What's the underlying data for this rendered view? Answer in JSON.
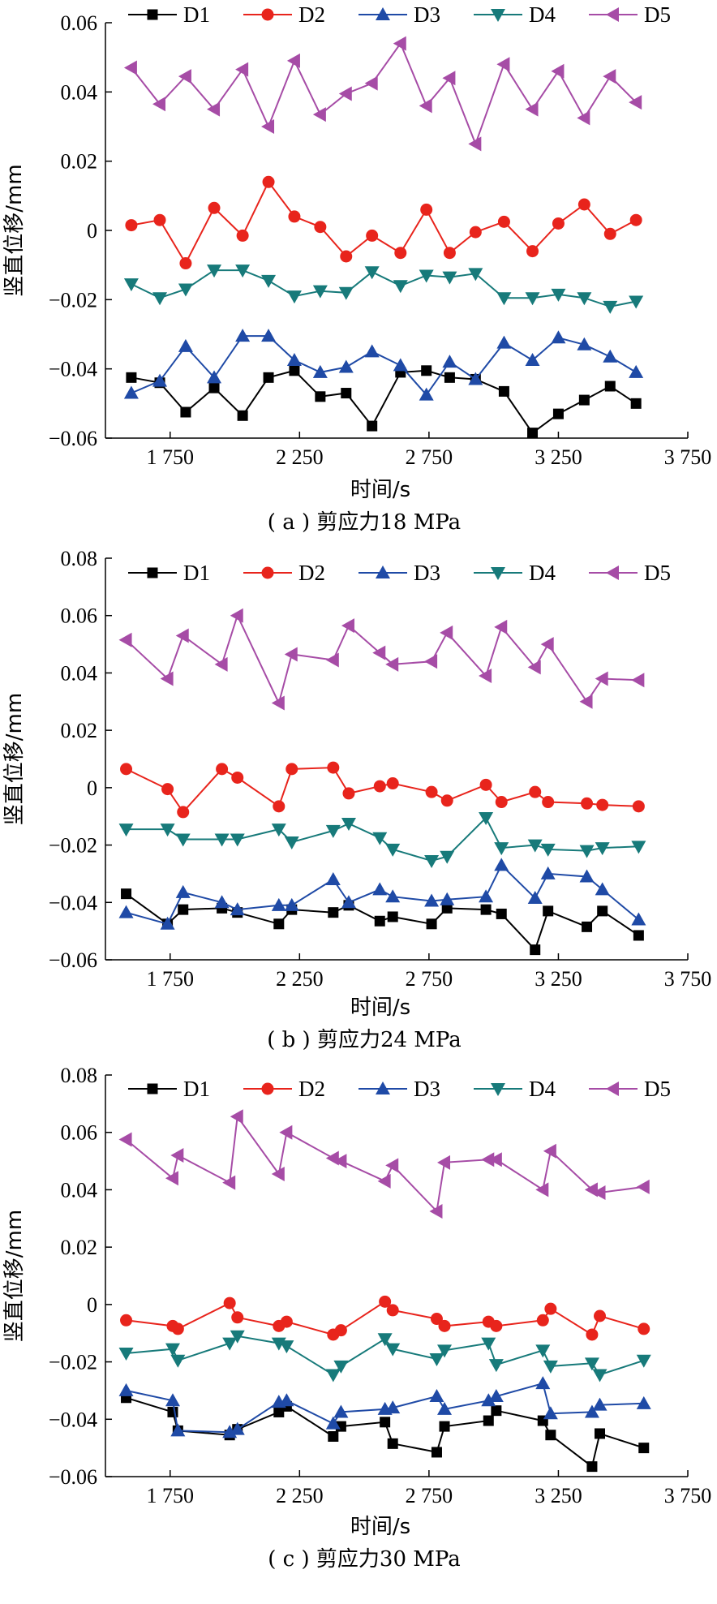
{
  "chart_data": [
    {
      "type": "line",
      "caption": "( a ) 剪应力18 MPa",
      "xlabel": "时间/s",
      "ylabel": "竖直位移/mm",
      "xlim": [
        1500,
        3750
      ],
      "ylim": [
        -0.06,
        0.06
      ],
      "xticks": [
        1750,
        2250,
        2750,
        3250,
        3750
      ],
      "xtick_labels": [
        "1 750",
        "2 250",
        "2 750",
        "3 250",
        "3 750"
      ],
      "yticks": [
        -0.06,
        -0.04,
        -0.02,
        0,
        0.02,
        0.04,
        0.06
      ],
      "ytick_labels": [
        "−0.06",
        "−0.04",
        "−0.02",
        "0",
        "0.02",
        "0.04",
        "0.06"
      ],
      "legend_position": "top",
      "series": [
        {
          "name": "D1",
          "color": "#000000",
          "marker": "square",
          "x": [
            1600,
            1710,
            1810,
            1920,
            2030,
            2130,
            2230,
            2330,
            2430,
            2530,
            2640,
            2740,
            2830,
            2930,
            3040,
            3150,
            3250,
            3350,
            3450,
            3550
          ],
          "y": [
            -0.0425,
            -0.044,
            -0.0525,
            -0.0455,
            -0.0535,
            -0.0425,
            -0.0405,
            -0.048,
            -0.047,
            -0.0565,
            -0.041,
            -0.0405,
            -0.0425,
            -0.043,
            -0.0465,
            -0.0585,
            -0.053,
            -0.049,
            -0.045,
            -0.05
          ]
        },
        {
          "name": "D2",
          "color": "#e8241c",
          "marker": "circle",
          "x": [
            1600,
            1710,
            1810,
            1920,
            2030,
            2130,
            2230,
            2330,
            2430,
            2530,
            2640,
            2740,
            2830,
            2930,
            3040,
            3150,
            3250,
            3350,
            3450,
            3550
          ],
          "y": [
            0.0015,
            0.003,
            -0.0095,
            0.0065,
            -0.0015,
            0.014,
            0.004,
            0.001,
            -0.0075,
            -0.0015,
            -0.0065,
            0.006,
            -0.0065,
            -0.0005,
            0.0025,
            -0.006,
            0.002,
            0.0075,
            -0.001,
            0.003
          ]
        },
        {
          "name": "D3",
          "color": "#1f4aa6",
          "marker": "triangle-up",
          "x": [
            1600,
            1710,
            1810,
            1920,
            2030,
            2130,
            2230,
            2330,
            2430,
            2530,
            2640,
            2740,
            2830,
            2930,
            3040,
            3150,
            3250,
            3350,
            3450,
            3550
          ],
          "y": [
            -0.047,
            -0.0435,
            -0.0335,
            -0.0425,
            -0.0305,
            -0.0305,
            -0.0375,
            -0.041,
            -0.0395,
            -0.035,
            -0.039,
            -0.0475,
            -0.038,
            -0.043,
            -0.0325,
            -0.0375,
            -0.031,
            -0.033,
            -0.0365,
            -0.041
          ]
        },
        {
          "name": "D4",
          "color": "#177a7a",
          "marker": "triangle-down",
          "x": [
            1600,
            1710,
            1810,
            1920,
            2030,
            2130,
            2230,
            2330,
            2430,
            2530,
            2640,
            2740,
            2830,
            2930,
            3040,
            3150,
            3250,
            3350,
            3450,
            3550
          ],
          "y": [
            -0.0155,
            -0.0195,
            -0.017,
            -0.0115,
            -0.0115,
            -0.0145,
            -0.019,
            -0.0175,
            -0.018,
            -0.012,
            -0.016,
            -0.013,
            -0.0135,
            -0.0125,
            -0.0195,
            -0.0195,
            -0.0185,
            -0.0195,
            -0.022,
            -0.0205
          ]
        },
        {
          "name": "D5",
          "color": "#a64ca6",
          "marker": "triangle-left",
          "x": [
            1600,
            1710,
            1810,
            1920,
            2030,
            2130,
            2230,
            2330,
            2430,
            2530,
            2640,
            2740,
            2830,
            2930,
            3040,
            3150,
            3250,
            3350,
            3450,
            3550
          ],
          "y": [
            0.047,
            0.0365,
            0.0445,
            0.035,
            0.0465,
            0.03,
            0.049,
            0.0335,
            0.0395,
            0.0425,
            0.054,
            0.036,
            0.044,
            0.025,
            0.048,
            0.035,
            0.046,
            0.0325,
            0.0445,
            0.037
          ]
        }
      ]
    },
    {
      "type": "line",
      "caption": "( b ) 剪应力24 MPa",
      "xlabel": "时间/s",
      "ylabel": "竖直位移/mm",
      "xlim": [
        1500,
        3750
      ],
      "ylim": [
        -0.06,
        0.08
      ],
      "xticks": [
        1750,
        2250,
        2750,
        3250,
        3750
      ],
      "xtick_labels": [
        "1 750",
        "2 250",
        "2 750",
        "3 250",
        "3 750"
      ],
      "yticks": [
        -0.06,
        -0.04,
        -0.02,
        0,
        0.02,
        0.04,
        0.06,
        0.08
      ],
      "ytick_labels": [
        "−0.06",
        "−0.04",
        "−0.02",
        "0",
        "0.02",
        "0.04",
        "0.06",
        "0.08"
      ],
      "legend_position": "top",
      "series": [
        {
          "name": "D1",
          "color": "#000000",
          "marker": "square",
          "x": [
            1580,
            1740,
            1800,
            1950,
            2010,
            2170,
            2220,
            2380,
            2440,
            2560,
            2610,
            2760,
            2820,
            2970,
            3030,
            3160,
            3210,
            3360,
            3420,
            3560
          ],
          "y": [
            -0.037,
            -0.0475,
            -0.0425,
            -0.042,
            -0.0435,
            -0.0475,
            -0.0425,
            -0.0435,
            -0.041,
            -0.0465,
            -0.045,
            -0.0475,
            -0.042,
            -0.0425,
            -0.044,
            -0.0565,
            -0.043,
            -0.0485,
            -0.043,
            -0.0515
          ]
        },
        {
          "name": "D2",
          "color": "#e8241c",
          "marker": "circle",
          "x": [
            1580,
            1740,
            1800,
            1950,
            2010,
            2170,
            2220,
            2380,
            2440,
            2560,
            2610,
            2760,
            2820,
            2970,
            3030,
            3160,
            3210,
            3360,
            3420,
            3560
          ],
          "y": [
            0.0065,
            -0.0005,
            -0.0085,
            0.0065,
            0.0035,
            -0.0065,
            0.0065,
            0.007,
            -0.002,
            0.0005,
            0.0015,
            -0.0015,
            -0.0045,
            0.001,
            -0.005,
            -0.0015,
            -0.005,
            -0.0055,
            -0.006,
            -0.0065
          ]
        },
        {
          "name": "D3",
          "color": "#1f4aa6",
          "marker": "triangle-up",
          "x": [
            1580,
            1740,
            1800,
            1950,
            2010,
            2170,
            2220,
            2380,
            2440,
            2560,
            2610,
            2760,
            2820,
            2970,
            3030,
            3160,
            3210,
            3360,
            3420,
            3560
          ],
          "y": [
            -0.0435,
            -0.0475,
            -0.0365,
            -0.04,
            -0.0425,
            -0.041,
            -0.041,
            -0.032,
            -0.04,
            -0.0355,
            -0.038,
            -0.0395,
            -0.039,
            -0.038,
            -0.027,
            -0.0385,
            -0.03,
            -0.031,
            -0.0355,
            -0.046
          ]
        },
        {
          "name": "D4",
          "color": "#177a7a",
          "marker": "triangle-down",
          "x": [
            1580,
            1740,
            1800,
            1950,
            2010,
            2170,
            2220,
            2380,
            2440,
            2560,
            2610,
            2760,
            2820,
            2970,
            3030,
            3160,
            3210,
            3360,
            3420,
            3560
          ],
          "y": [
            -0.0145,
            -0.0145,
            -0.018,
            -0.018,
            -0.018,
            -0.0145,
            -0.019,
            -0.015,
            -0.0125,
            -0.0175,
            -0.0215,
            -0.0255,
            -0.024,
            -0.0105,
            -0.021,
            -0.02,
            -0.0215,
            -0.022,
            -0.021,
            -0.0205
          ]
        },
        {
          "name": "D5",
          "color": "#a64ca6",
          "marker": "triangle-left",
          "x": [
            1580,
            1740,
            1800,
            1950,
            2010,
            2170,
            2220,
            2380,
            2440,
            2560,
            2610,
            2760,
            2820,
            2970,
            3030,
            3160,
            3210,
            3360,
            3420,
            3560
          ],
          "y": [
            0.0515,
            0.038,
            0.053,
            0.043,
            0.06,
            0.0295,
            0.0465,
            0.0445,
            0.0565,
            0.047,
            0.043,
            0.044,
            0.054,
            0.039,
            0.056,
            0.042,
            0.05,
            0.03,
            0.038,
            0.0375
          ]
        }
      ]
    },
    {
      "type": "line",
      "caption": "( c ) 剪应力30 MPa",
      "xlabel": "时间/s",
      "ylabel": "竖直位移/mm",
      "xlim": [
        1500,
        3750
      ],
      "ylim": [
        -0.06,
        0.08
      ],
      "xticks": [
        1750,
        2250,
        2750,
        3250,
        3750
      ],
      "xtick_labels": [
        "1 750",
        "2 250",
        "2 750",
        "3 250",
        "3 750"
      ],
      "yticks": [
        -0.06,
        -0.04,
        -0.02,
        0,
        0.02,
        0.04,
        0.06,
        0.08
      ],
      "ytick_labels": [
        "−0.06",
        "−0.04",
        "−0.02",
        "0",
        "0.02",
        "0.04",
        "0.06",
        "0.08"
      ],
      "legend_position": "top",
      "series": [
        {
          "name": "D1",
          "color": "#000000",
          "marker": "square",
          "x": [
            1580,
            1760,
            1780,
            1980,
            2010,
            2170,
            2200,
            2380,
            2410,
            2580,
            2610,
            2780,
            2810,
            2980,
            3010,
            3190,
            3220,
            3380,
            3410,
            3580
          ],
          "y": [
            -0.0325,
            -0.0375,
            -0.044,
            -0.0455,
            -0.0435,
            -0.0375,
            -0.0355,
            -0.046,
            -0.0425,
            -0.041,
            -0.0485,
            -0.0515,
            -0.0425,
            -0.0405,
            -0.037,
            -0.0405,
            -0.0455,
            -0.0565,
            -0.045,
            -0.05
          ]
        },
        {
          "name": "D2",
          "color": "#e8241c",
          "marker": "circle",
          "x": [
            1580,
            1760,
            1780,
            1980,
            2010,
            2170,
            2200,
            2380,
            2410,
            2580,
            2610,
            2780,
            2810,
            2980,
            3010,
            3190,
            3220,
            3380,
            3410,
            3580
          ],
          "y": [
            -0.0055,
            -0.0075,
            -0.0085,
            0.0005,
            -0.0045,
            -0.0075,
            -0.006,
            -0.0105,
            -0.009,
            0.001,
            -0.002,
            -0.005,
            -0.0075,
            -0.006,
            -0.0075,
            -0.0055,
            -0.0015,
            -0.0105,
            -0.004,
            -0.0085
          ]
        },
        {
          "name": "D3",
          "color": "#1f4aa6",
          "marker": "triangle-up",
          "x": [
            1580,
            1760,
            1780,
            1980,
            2010,
            2170,
            2200,
            2380,
            2410,
            2580,
            2610,
            2780,
            2810,
            2980,
            3010,
            3190,
            3220,
            3380,
            3410,
            3580
          ],
          "y": [
            -0.03,
            -0.0335,
            -0.044,
            -0.0445,
            -0.0435,
            -0.034,
            -0.0335,
            -0.0415,
            -0.0375,
            -0.0365,
            -0.036,
            -0.032,
            -0.0365,
            -0.0335,
            -0.032,
            -0.0275,
            -0.038,
            -0.0375,
            -0.035,
            -0.0345
          ]
        },
        {
          "name": "D4",
          "color": "#177a7a",
          "marker": "triangle-down",
          "x": [
            1580,
            1760,
            1780,
            1980,
            2010,
            2170,
            2200,
            2380,
            2410,
            2580,
            2610,
            2780,
            2810,
            2980,
            3010,
            3190,
            3220,
            3380,
            3410,
            3580
          ],
          "y": [
            -0.017,
            -0.0155,
            -0.0195,
            -0.0135,
            -0.011,
            -0.0135,
            -0.0145,
            -0.0245,
            -0.0215,
            -0.012,
            -0.0155,
            -0.019,
            -0.016,
            -0.0135,
            -0.021,
            -0.016,
            -0.0215,
            -0.0205,
            -0.0245,
            -0.0195
          ]
        },
        {
          "name": "D5",
          "color": "#a64ca6",
          "marker": "triangle-left",
          "x": [
            1580,
            1760,
            1780,
            1980,
            2010,
            2170,
            2200,
            2380,
            2410,
            2580,
            2610,
            2780,
            2810,
            2980,
            3010,
            3190,
            3220,
            3380,
            3410,
            3580
          ],
          "y": [
            0.0575,
            0.044,
            0.052,
            0.0425,
            0.0655,
            0.0455,
            0.06,
            0.051,
            0.05,
            0.043,
            0.0485,
            0.0325,
            0.0495,
            0.0505,
            0.0505,
            0.04,
            0.0535,
            0.04,
            0.039,
            0.041
          ]
        }
      ]
    }
  ]
}
